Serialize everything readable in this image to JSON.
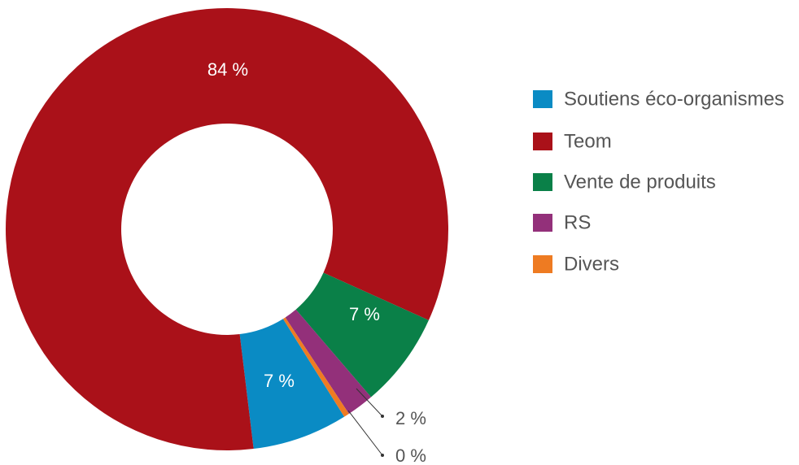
{
  "chart_data": {
    "type": "donut",
    "categories": [
      "Soutiens éco-organismes",
      "Teom",
      "Vente de produits",
      "RS",
      "Divers"
    ],
    "values": [
      7,
      84,
      7,
      2,
      0.4
    ],
    "value_labels": [
      "7 %",
      "84 %",
      "7 %",
      "2 %",
      "0 %"
    ],
    "colors": [
      "#0a8bc4",
      "#aa1119",
      "#0a8048",
      "#93307a",
      "#ee7b22"
    ],
    "legend": "right"
  }
}
